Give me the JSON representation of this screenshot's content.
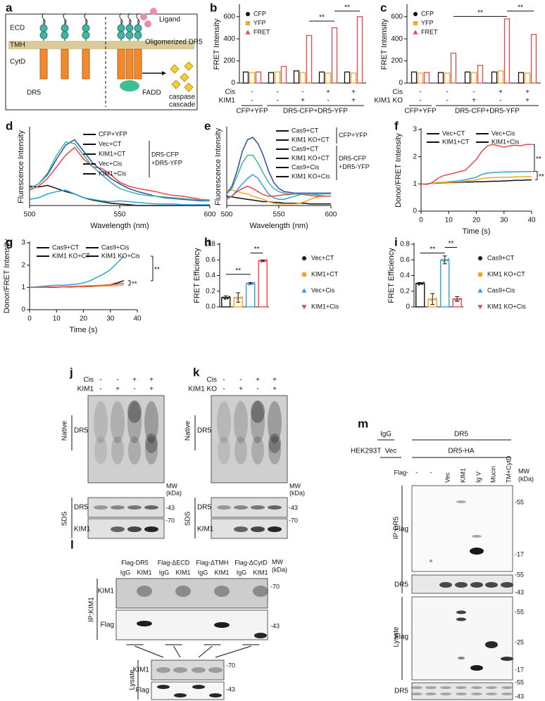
{
  "chart_data": [
    {
      "type": "grouped_bar",
      "label": "b",
      "ylabel": "FRET Intensity",
      "ylim": [
        0,
        700
      ],
      "yticks": [
        0,
        200,
        400,
        600
      ],
      "conditions": [
        {
          "name": "Cis",
          "values": [
            "-",
            "-",
            "-",
            "+",
            "+"
          ]
        },
        {
          "name": "KIM1",
          "values": [
            "-",
            "-",
            "+",
            "-",
            "+"
          ]
        }
      ],
      "groups": [
        "CFP+YFP",
        "DR5-CFP+DR5-YFP"
      ],
      "series": [
        {
          "name": "CFP",
          "color": "#111111",
          "values": [
            100,
            95,
            110,
            100,
            100
          ]
        },
        {
          "name": "YFP",
          "color": "#f5a623",
          "values": [
            95,
            100,
            95,
            90,
            90
          ]
        },
        {
          "name": "FRET",
          "color": "#e8474c",
          "values": [
            100,
            150,
            430,
            500,
            600
          ]
        }
      ],
      "annotations": [
        "**",
        "**"
      ]
    },
    {
      "type": "grouped_bar",
      "label": "c",
      "ylabel": "FRET Intensity",
      "ylim": [
        0,
        700
      ],
      "yticks": [
        0,
        200,
        400,
        600
      ],
      "conditions": [
        {
          "name": "Cis",
          "values": [
            "-",
            "-",
            "-",
            "+",
            "+"
          ]
        },
        {
          "name": "KIM1 KO",
          "values": [
            "-",
            "-",
            "+",
            "-",
            "+"
          ]
        }
      ],
      "groups": [
        "CFP+YFP",
        "DR5-CFP+DR5-YFP"
      ],
      "series": [
        {
          "name": "CFP",
          "color": "#111111",
          "values": [
            100,
            95,
            100,
            100,
            95
          ]
        },
        {
          "name": "YFP",
          "color": "#f5a623",
          "values": [
            90,
            90,
            95,
            110,
            90
          ]
        },
        {
          "name": "FRET",
          "color": "#e8474c",
          "values": [
            95,
            270,
            160,
            580,
            440
          ]
        }
      ],
      "annotations": [
        "**",
        "**"
      ]
    },
    {
      "type": "line",
      "label": "d",
      "ylabel": "Flurescence Intensity",
      "xlabel": "Wavelength (nm)",
      "x": [
        500,
        505,
        510,
        515,
        520,
        525,
        530,
        535,
        540,
        545,
        550,
        555,
        560,
        565,
        570,
        575,
        580,
        585,
        590,
        595,
        600
      ],
      "xlim": [
        500,
        600
      ],
      "xticks": [
        500,
        550,
        600
      ],
      "ylim": [
        0,
        100
      ],
      "legend_groups": [
        [
          "DR5-CFP",
          "+DR5-YFP"
        ]
      ],
      "series": [
        {
          "name": "CFP+YFP",
          "color": "#111111",
          "values": [
            25,
            24,
            26,
            22,
            18,
            15,
            10,
            7,
            5,
            3,
            2,
            1,
            0,
            0,
            0,
            0,
            0,
            0,
            0,
            0,
            0
          ]
        },
        {
          "name": "Vec+CT",
          "color": "#2ea3d8",
          "values": [
            8,
            10,
            15,
            18,
            20,
            15,
            10,
            8,
            6,
            5,
            6,
            5,
            4,
            3,
            2,
            2,
            2,
            1,
            1,
            1,
            1
          ]
        },
        {
          "name": "KIM1+CT",
          "color": "#e8474c",
          "values": [
            20,
            25,
            35,
            50,
            65,
            75,
            60,
            50,
            48,
            40,
            30,
            25,
            22,
            20,
            18,
            15,
            13,
            12,
            10,
            8,
            7
          ]
        },
        {
          "name": "Vec+Cis",
          "color": "#2b4ea2",
          "values": [
            22,
            28,
            40,
            60,
            78,
            85,
            70,
            55,
            45,
            35,
            28,
            22,
            18,
            15,
            12,
            10,
            9,
            8,
            7,
            6,
            6
          ]
        },
        {
          "name": "KIM1+Cis",
          "color": "#40b59a",
          "values": [
            22,
            28,
            42,
            65,
            82,
            80,
            65,
            50,
            40,
            30,
            22,
            18,
            15,
            13,
            12,
            11,
            10,
            9,
            8,
            7,
            6
          ]
        }
      ]
    },
    {
      "type": "line",
      "label": "e",
      "ylabel": "Fluorescence Intensity",
      "xlabel": "Wavelength (nm)",
      "x": [
        500,
        505,
        510,
        515,
        520,
        525,
        530,
        535,
        540,
        545,
        550,
        555,
        560,
        565,
        570,
        575,
        580,
        585,
        590,
        595,
        600
      ],
      "xlim": [
        500,
        600
      ],
      "xticks": [
        500,
        550,
        600
      ],
      "ylim": [
        0,
        100
      ],
      "legend_groups": [
        [
          "CFP+YFP"
        ],
        [
          "DR5-CFP",
          "+DR5-YFP"
        ]
      ],
      "series": [
        {
          "name": "Cas9+CT",
          "color": "#111111",
          "values": [
            12,
            11,
            10,
            9,
            8,
            7,
            6,
            5,
            5,
            4,
            4,
            3,
            3,
            3,
            3,
            3,
            2,
            2,
            2,
            2,
            2
          ]
        },
        {
          "name": "KIM1 KO+CT",
          "color": "#f5a623",
          "values": [
            20,
            20,
            18,
            16,
            15,
            12,
            10,
            8,
            5,
            3,
            2,
            2,
            2,
            2,
            3,
            5,
            8,
            10,
            12,
            12,
            12
          ]
        },
        {
          "name": "Cas9+CT",
          "color": "#2ea3d8",
          "values": [
            8,
            12,
            20,
            28,
            35,
            40,
            35,
            25,
            15,
            10,
            8,
            8,
            10,
            12,
            14,
            15,
            15,
            14,
            13,
            12,
            12
          ]
        },
        {
          "name": "KIM1 KO+CT",
          "color": "#e8474c",
          "values": [
            10,
            12,
            18,
            22,
            25,
            22,
            18,
            14,
            12,
            12,
            13,
            14,
            14,
            15,
            15,
            14,
            13,
            12,
            12,
            12,
            12
          ]
        },
        {
          "name": "Cas9+Cis",
          "color": "#2b4ea2",
          "values": [
            15,
            25,
            45,
            70,
            85,
            88,
            80,
            65,
            45,
            30,
            22,
            18,
            17,
            16,
            16,
            16,
            16,
            16,
            16,
            16,
            16
          ]
        },
        {
          "name": "KIM1 KO+Cis",
          "color": "#40b59a",
          "values": [
            15,
            22,
            38,
            55,
            65,
            65,
            55,
            42,
            30,
            22,
            18,
            16,
            15,
            15,
            15,
            15,
            15,
            15,
            15,
            15,
            15
          ]
        }
      ]
    },
    {
      "type": "line",
      "label": "f",
      "ylabel": "Donor/FRET Intensity",
      "xlabel": "Time (s)",
      "x": [
        0,
        2,
        4,
        6,
        8,
        10,
        12,
        14,
        16,
        18,
        20,
        22,
        24,
        26,
        28,
        30,
        32,
        34,
        36,
        38,
        40
      ],
      "xlim": [
        0,
        40
      ],
      "xticks": [
        0,
        10,
        20,
        30,
        40
      ],
      "ylim": [
        0,
        3
      ],
      "yticks": [
        0,
        1,
        2,
        3
      ],
      "annotations": [
        "**",
        "**"
      ],
      "series": [
        {
          "name": "Vec+CT",
          "color": "#111111",
          "values": [
            1,
            1,
            1.02,
            1.03,
            1.04,
            1.05,
            1.05,
            1.06,
            1.07,
            1.07,
            1.08,
            1.08,
            1.09,
            1.1,
            1.1,
            1.11,
            1.12,
            1.13,
            1.13,
            1.14,
            1.15
          ]
        },
        {
          "name": "Vec+Cis",
          "color": "#2ea3d8",
          "values": [
            1,
            1,
            1.03,
            1.05,
            1.06,
            1.08,
            1.1,
            1.12,
            1.15,
            1.2,
            1.25,
            1.35,
            1.4,
            1.42,
            1.43,
            1.44,
            1.44,
            1.44,
            1.45,
            1.45,
            1.46
          ]
        },
        {
          "name": "KIM1+CT",
          "color": "#f5a623",
          "values": [
            1,
            1,
            1.02,
            1.04,
            1.05,
            1.06,
            1.07,
            1.08,
            1.1,
            1.12,
            1.15,
            1.2,
            1.22,
            1.23,
            1.24,
            1.25,
            1.25,
            1.26,
            1.26,
            1.27,
            1.27
          ]
        },
        {
          "name": "KIM1+Cis",
          "color": "#e8474c",
          "values": [
            1,
            0.98,
            1.05,
            1.2,
            1.3,
            1.35,
            1.4,
            1.45,
            1.5,
            1.7,
            1.9,
            2.2,
            2.4,
            2.45,
            2.4,
            2.35,
            2.4,
            2.42,
            2.4,
            2.45,
            2.45
          ]
        }
      ]
    },
    {
      "type": "line",
      "label": "g",
      "ylabel": "Donor/FRET Intensity",
      "xlabel": "Time (s)",
      "x": [
        0,
        2.5,
        5,
        7.5,
        10,
        12.5,
        15,
        17.5,
        20,
        22.5,
        25,
        27.5,
        30,
        32.5,
        35
      ],
      "xlim": [
        0,
        40
      ],
      "xticks": [
        0,
        10,
        20,
        30,
        40
      ],
      "ylim": [
        0,
        3
      ],
      "yticks": [
        0,
        1,
        2,
        3
      ],
      "annotations": [
        "**",
        "**"
      ],
      "series": [
        {
          "name": "Cas9+CT",
          "color": "#111111",
          "values": [
            1,
            1,
            1,
            1,
            1.01,
            1.02,
            1.02,
            1.03,
            1.03,
            1.04,
            1.05,
            1.08,
            1.12,
            1.2,
            1.3
          ]
        },
        {
          "name": "Cas9+Cis",
          "color": "#2ea3d8",
          "values": [
            1,
            1.02,
            1.05,
            1.08,
            1.1,
            1.1,
            1.12,
            1.15,
            1.2,
            1.3,
            1.45,
            1.6,
            1.8,
            2.1,
            2.4
          ]
        },
        {
          "name": "KIM1 KO+CT",
          "color": "#f5a623",
          "values": [
            1,
            1,
            1,
            1.01,
            1.02,
            1.02,
            1.03,
            1.03,
            1.04,
            1.05,
            1.05,
            1.06,
            1.07,
            1.08,
            1.1
          ]
        },
        {
          "name": "KIM1 KO+Cis",
          "color": "#e8474c",
          "values": [
            1,
            1,
            1.01,
            1.02,
            1.02,
            1.03,
            1.04,
            1.05,
            1.06,
            1.07,
            1.08,
            1.1,
            1.12,
            1.15,
            1.18
          ]
        }
      ]
    },
    {
      "type": "bar",
      "label": "h",
      "ylabel": "FRET Efficiency",
      "ylim": [
        0,
        0.8
      ],
      "yticks": [
        {
          "value": 0,
          "label": "0.0"
        },
        0.2,
        0.4,
        0.6,
        0.8
      ],
      "categories": [
        "Vec+CT",
        "KIM1+CT",
        "Vec+Cis",
        "KIM1+Cis"
      ],
      "colors": [
        "#111111",
        "#f5a623",
        "#2ea3d8",
        "#e8474c"
      ],
      "values": [
        0.12,
        0.12,
        0.3,
        0.59
      ],
      "errors": [
        0.02,
        0.06,
        0.01,
        0.01
      ],
      "annotations": [
        "**",
        "**"
      ]
    },
    {
      "type": "bar",
      "label": "i",
      "ylabel": "FRET Efficiency",
      "ylim": [
        0,
        0.8
      ],
      "yticks": [
        0,
        0.2,
        0.4,
        0.6,
        0.8
      ],
      "categories": [
        "Cas9+CT",
        "KIM1 KO+CT",
        "Cas9+Cis",
        "KIM1 KO+Cis"
      ],
      "colors": [
        "#111111",
        "#f5a623",
        "#2ea3d8",
        "#e8474c"
      ],
      "values": [
        0.3,
        0.1,
        0.6,
        0.1
      ],
      "errors": [
        0.01,
        0.07,
        0.05,
        0.03
      ],
      "annotations": [
        "**",
        "**"
      ]
    }
  ],
  "schematic": {
    "label": "a",
    "ecd": "ECD",
    "tmh": "TMH",
    "cytd": "CytD",
    "dr5": "DR5",
    "ligand": "Ligand",
    "oligomerized": "Oligomerized DR5",
    "fadd": "FADD",
    "caspase": [
      "caspase",
      "cascade"
    ]
  },
  "blots": {
    "j": {
      "label": "j",
      "rows": [
        {
          "name": "Cis",
          "values": [
            "-",
            "-",
            "+",
            "+"
          ]
        },
        {
          "name": "KIM1",
          "values": [
            "-",
            "+",
            "-",
            "+"
          ]
        }
      ],
      "native": "Native",
      "native_band": "DR5",
      "mw": [
        "MW",
        "(kDa)"
      ],
      "sds": "SDS",
      "sds_bands": [
        {
          "name": "DR5",
          "marker": "-43"
        },
        {
          "name": "KIM1",
          "marker": "-70"
        }
      ]
    },
    "k": {
      "label": "k",
      "rows": [
        {
          "name": "Cis",
          "values": [
            "-",
            "-",
            "+",
            "+"
          ]
        },
        {
          "name": "KIM1 KO",
          "values": [
            "-",
            "+",
            "-",
            "+"
          ]
        }
      ],
      "native": "Native",
      "native_band": "DR5",
      "mw": [
        "MW",
        "(kDa)"
      ],
      "sds": "SDS",
      "sds_bands": [
        {
          "name": "DR5",
          "marker": "-43"
        },
        {
          "name": "KIM1",
          "marker": "-70"
        }
      ]
    },
    "l": {
      "label": "l",
      "constructs": [
        "Flag-DR5",
        "Flag-ΔECD",
        "Flag-ΔTMH",
        "Flag-ΔCytD"
      ],
      "lanes": [
        "IgG",
        "KIM1",
        "IgG",
        "KIM1",
        "IgG",
        "KIM1",
        "IgG",
        "KIM1"
      ],
      "mw": [
        "MW",
        "(kDa)"
      ],
      "ip": "IP:KIM1",
      "ip_blots": [
        {
          "name": "KIM1",
          "marker": "-70"
        },
        {
          "name": "Flag",
          "marker": "-43"
        }
      ],
      "lysate": "Lysate",
      "lysate_blots": [
        {
          "name": "KIM1",
          "marker": "-70"
        },
        {
          "name": "Flag",
          "marker": "-43"
        }
      ]
    },
    "m": {
      "label": "m",
      "ip_header": [
        "IgG",
        "DR5"
      ],
      "cell": "HEK293T",
      "transfection": [
        "Vec",
        "DR5-HA"
      ],
      "flag": "Flag-",
      "lanes": [
        "-",
        "-",
        "Vec",
        "KIM1",
        "Ig V",
        "Mucin",
        "TM+CytD"
      ],
      "mw": [
        "MW",
        "(kDa)"
      ],
      "ip": "IP:DR5",
      "ip_blots": [
        {
          "name": "Flag",
          "markers": [
            "-55",
            "-17"
          ]
        },
        {
          "name": "DR5",
          "markers": [
            "-55",
            "-43"
          ]
        }
      ],
      "lysate": "Lysate",
      "lysate_blots": [
        {
          "name": "Flag",
          "markers": [
            "-55",
            "-25",
            "-17"
          ]
        },
        {
          "name": "DR5",
          "markers": [
            "-55",
            "-43"
          ]
        }
      ]
    }
  }
}
